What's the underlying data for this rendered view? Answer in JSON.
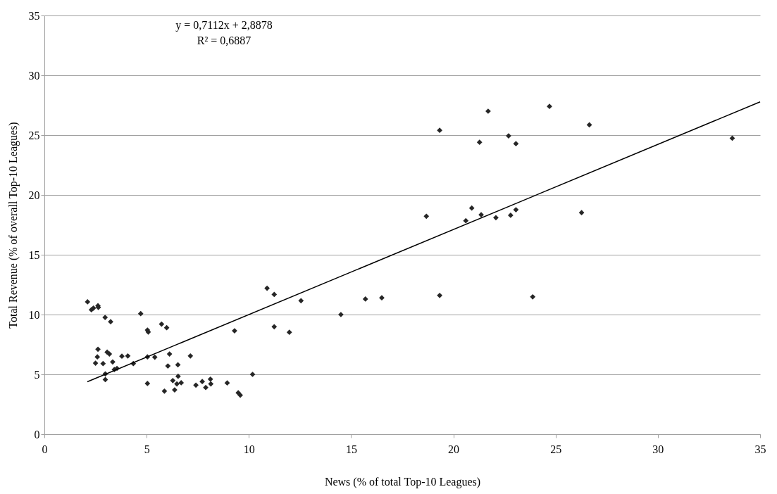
{
  "chart_data": {
    "type": "scatter",
    "xlabel": "News (% of total Top-10 Leagues)",
    "ylabel": "Total Revenue (% of overall Top-10 Leagues)",
    "annotations": [
      "y = 0,7112x + 2,8878",
      "R² = 0,6887"
    ],
    "xlim": [
      0,
      35
    ],
    "xticks": [
      0,
      5,
      10,
      15,
      20,
      25,
      30,
      35
    ],
    "ylim": [
      0,
      35
    ],
    "yticks": [
      0,
      5,
      10,
      15,
      20,
      25,
      30,
      35
    ],
    "grid": "y",
    "series": [
      {
        "marker": "diamond",
        "color": "#262626",
        "x": [
          2.11,
          2.3,
          2.4,
          2.62,
          2.64,
          2.97,
          3.24,
          4.71,
          5.04,
          5.08,
          5.73,
          5.98,
          2.62,
          2.59,
          2.5,
          2.87,
          3.07,
          3.18,
          3.34,
          2.98,
          2.98,
          3.42,
          3.55,
          3.79,
          4.08,
          4.35,
          5.04,
          5.4,
          5.04,
          6.04,
          6.12,
          6.53,
          6.54,
          6.28,
          6.48,
          6.69,
          5.87,
          6.37,
          7.14,
          7.41,
          7.72,
          7.89,
          8.12,
          8.14,
          8.94,
          9.3,
          9.48,
          9.58,
          10.18,
          10.89,
          11.24,
          12.55,
          11.24,
          11.98,
          14.5,
          15.7,
          16.5,
          19.33,
          21.7,
          24.7,
          26.65,
          21.28,
          22.7,
          23.06,
          33.64,
          18.68,
          20.9,
          20.61,
          21.36,
          22.08,
          22.8,
          23.06,
          26.27,
          19.33,
          23.88
        ],
        "values": [
          11.06,
          10.4,
          10.54,
          10.74,
          10.6,
          9.76,
          9.4,
          10.08,
          8.7,
          8.54,
          9.2,
          8.9,
          7.1,
          6.46,
          5.94,
          5.9,
          6.86,
          6.7,
          6.04,
          5.04,
          4.56,
          5.4,
          5.5,
          6.52,
          6.54,
          5.9,
          6.46,
          6.44,
          4.24,
          5.7,
          6.7,
          5.8,
          4.84,
          4.48,
          4.2,
          4.3,
          3.6,
          3.7,
          6.54,
          4.1,
          4.4,
          3.9,
          4.6,
          4.2,
          4.28,
          8.64,
          3.46,
          3.26,
          5.0,
          12.2,
          11.68,
          11.16,
          8.98,
          8.52,
          10.0,
          11.3,
          11.4,
          25.4,
          27.0,
          27.4,
          25.86,
          24.4,
          24.94,
          24.28,
          24.74,
          18.22,
          18.9,
          17.84,
          18.34,
          18.1,
          18.3,
          18.76,
          18.52,
          11.6,
          11.48
        ]
      },
      {
        "type": "line",
        "line_style": "solid",
        "color": "#000000",
        "x": [
          2.1,
          35
        ],
        "values": [
          4.38,
          27.78
        ]
      }
    ]
  }
}
